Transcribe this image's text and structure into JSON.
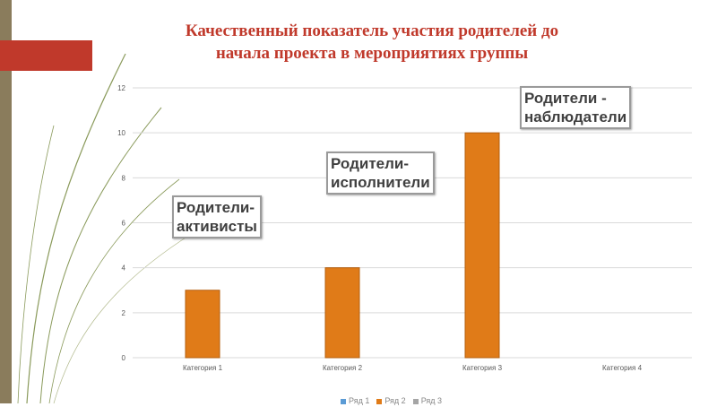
{
  "title": {
    "line1": "Качественный показатель участия родителей до",
    "line2": "начала проекта в мероприятиях группы"
  },
  "callouts": {
    "activists": {
      "line1": "Родители-",
      "line2": "активисты"
    },
    "performers": {
      "line1": "Родители-",
      "line2": "исполнители"
    },
    "observers": {
      "line1": "Родители -",
      "line2": "наблюдатели"
    }
  },
  "legend": [
    {
      "label": "Ряд 1",
      "color": "#5b9bd5"
    },
    {
      "label": "Ряд 2",
      "color": "#e07b18"
    },
    {
      "label": "Ряд 3",
      "color": "#a5a5a5"
    }
  ],
  "colors": {
    "accent": "#c0392b",
    "bar": "#e07b18",
    "bar_border": "#b55f0e",
    "side": "#8a7c5c"
  },
  "chart_data": {
    "type": "bar",
    "categories": [
      "Категория 1",
      "Категория 2",
      "Категория 3",
      "Категория 4"
    ],
    "series": [
      {
        "name": "Ряд 2",
        "values": [
          3,
          4,
          10,
          0
        ]
      }
    ],
    "y_ticks": [
      "0",
      "2",
      "4",
      "6",
      "8",
      "10",
      "12"
    ],
    "ylim": [
      0,
      12
    ],
    "grid": true
  }
}
